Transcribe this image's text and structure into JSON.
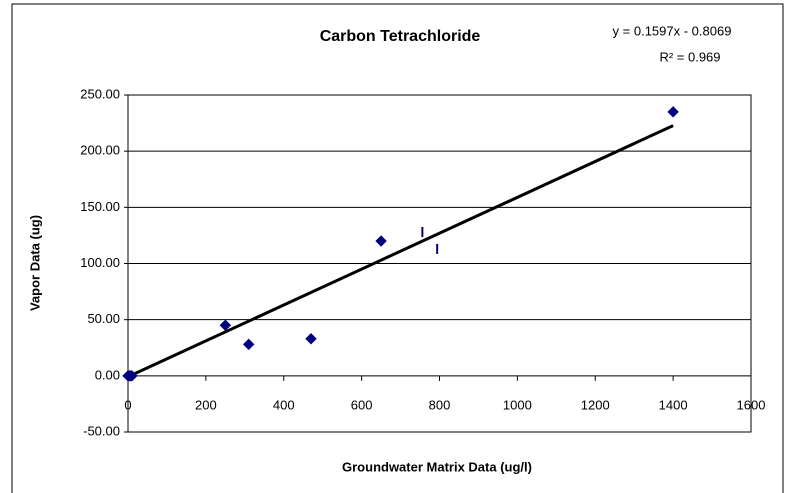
{
  "chart_data": {
    "type": "scatter",
    "title": "Carbon Tetrachloride",
    "x_label": "Groundwater Matrix Data (ug/l)",
    "y_label": "Vapor Data (ug)",
    "series": [
      {
        "color": "#00007f",
        "marker": "diamond",
        "x": [
          0,
          3,
          6,
          10,
          250,
          310,
          470,
          650,
          1400
        ],
        "values": [
          0,
          0,
          0,
          0,
          45,
          28,
          33,
          120,
          235
        ]
      },
      {
        "color": "#00007f",
        "marker": "dash",
        "x": [
          756,
          794
        ],
        "values": [
          128,
          113
        ]
      }
    ],
    "trendline": {
      "slope": 0.1597,
      "intercept": -0.8069,
      "x_range": [
        0,
        1400
      ],
      "color": "#000000",
      "equation": "y = 0.1597x - 0.8069",
      "r_squared": "R² = 0.969"
    },
    "xlim": [
      0,
      1600
    ],
    "xticks": [
      0,
      200,
      400,
      600,
      800,
      1000,
      1200,
      1400,
      1600
    ],
    "ylim": [
      -50,
      250
    ],
    "yticks": [
      {
        "value": -50,
        "label": "-50.00"
      },
      {
        "value": 0,
        "label": "0.00"
      },
      {
        "value": 50,
        "label": "50.00"
      },
      {
        "value": 100,
        "label": "100.00"
      },
      {
        "value": 150,
        "label": "150.00"
      },
      {
        "value": 200,
        "label": "200.00"
      },
      {
        "value": 250,
        "label": "250.00"
      }
    ],
    "grid": true
  }
}
